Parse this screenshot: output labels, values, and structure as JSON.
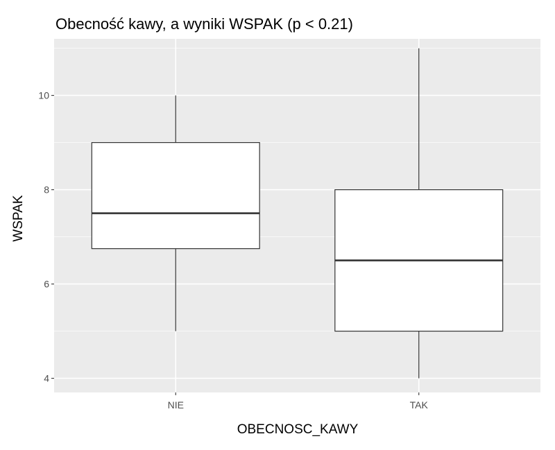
{
  "chart_data": {
    "type": "boxplot",
    "title": "Obecność kawy, a wyniki WSPAK (p < 0.21)",
    "xlabel": "OBECNOSC_KAWY",
    "ylabel": "WSPAK",
    "categories": [
      "NIE",
      "TAK"
    ],
    "boxes": [
      {
        "category": "NIE",
        "whisker_low": 5,
        "q1": 6.75,
        "median": 7.5,
        "q3": 9,
        "whisker_high": 10
      },
      {
        "category": "TAK",
        "whisker_low": 4,
        "q1": 5,
        "median": 6.5,
        "q3": 8,
        "whisker_high": 11
      }
    ],
    "ylim": [
      3.7,
      11.2
    ],
    "yticks": [
      4,
      6,
      8,
      10
    ],
    "ytick_labels": [
      "4",
      "6",
      "8",
      "10"
    ],
    "grid": true,
    "legend": "none"
  },
  "colors": {
    "panel_background": "#ebebeb",
    "grid_major": "#ffffff",
    "box_fill": "#ffffff",
    "box_line": "#333333",
    "tick_label": "#4d4d4d"
  }
}
